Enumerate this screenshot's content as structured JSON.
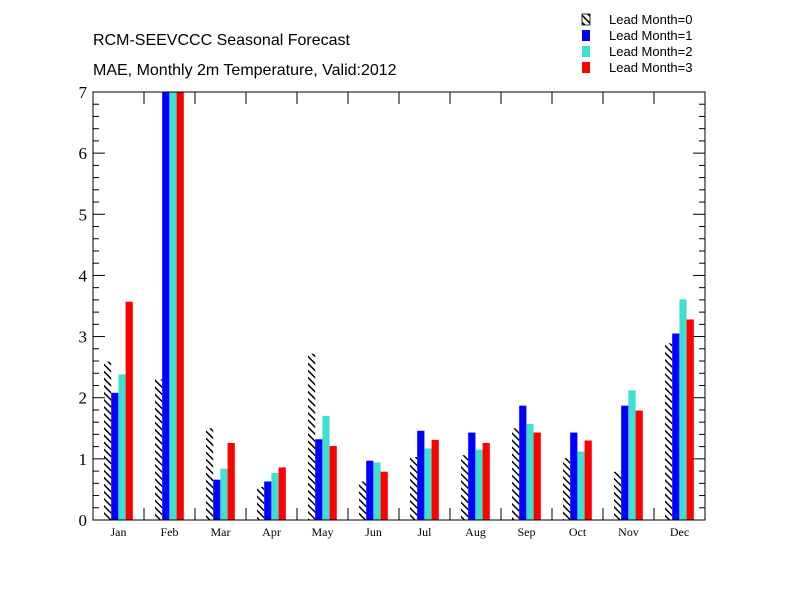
{
  "chart_data": {
    "type": "bar",
    "title": "RCM-SEEVCCC Seasonal Forecast",
    "subtitle": "MAE, Monthly 2m Temperature, Valid:2012",
    "xlabel": "",
    "ylabel": "",
    "ylim": [
      0,
      7
    ],
    "yticks": [
      "0",
      "1",
      "2",
      "3",
      "4",
      "5",
      "6",
      "7"
    ],
    "categories": [
      "Jan",
      "Feb",
      "Mar",
      "Apr",
      "May",
      "Jun",
      "Jul",
      "Aug",
      "Sep",
      "Oct",
      "Nov",
      "Dec"
    ],
    "legend_position": "top-right",
    "grid": false,
    "series": [
      {
        "name": "Lead Month=0",
        "color": "#000000",
        "pattern": "hatched",
        "values": [
          2.59,
          2.3,
          1.5,
          0.54,
          2.72,
          0.63,
          1.03,
          1.06,
          1.5,
          1.01,
          0.79,
          2.89
        ]
      },
      {
        "name": "Lead Month=1",
        "color": "#0000ff",
        "pattern": "solid",
        "values": [
          2.08,
          7.0,
          0.66,
          0.63,
          1.32,
          0.97,
          1.46,
          1.43,
          1.87,
          1.43,
          1.87,
          3.05
        ]
      },
      {
        "name": "Lead Month=2",
        "color": "#40e0d0",
        "pattern": "solid",
        "values": [
          2.38,
          7.0,
          0.84,
          0.77,
          1.7,
          0.94,
          1.17,
          1.15,
          1.57,
          1.12,
          2.12,
          3.61
        ]
      },
      {
        "name": "Lead Month=3",
        "color": "#ff0000",
        "pattern": "solid",
        "values": [
          3.57,
          7.0,
          1.26,
          0.86,
          1.21,
          0.79,
          1.31,
          1.26,
          1.43,
          1.3,
          1.79,
          3.28
        ]
      }
    ]
  }
}
